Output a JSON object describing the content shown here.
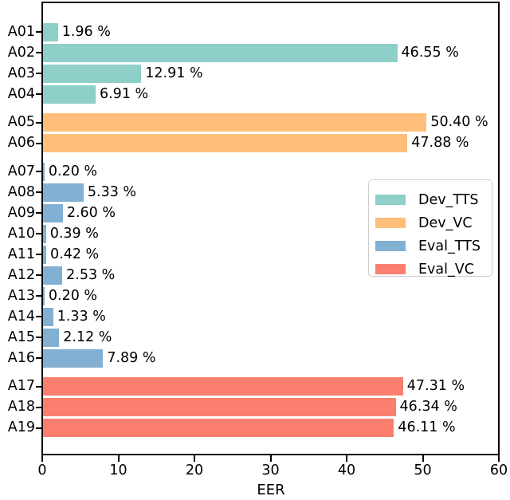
{
  "figure": {
    "background": "#ffffff",
    "axis_color": "#000000"
  },
  "chart_data": {
    "type": "bar",
    "orientation": "horizontal",
    "title": "",
    "xlabel": "EER",
    "ylabel": "",
    "xlim": [
      0,
      60
    ],
    "xticks": [
      "0",
      "10",
      "20",
      "30",
      "40",
      "50",
      "60"
    ],
    "xtick_values": [
      0,
      10,
      20,
      30,
      40,
      50,
      60
    ],
    "grid": false,
    "legend_position": "center-right",
    "bar_label_suffix": " %",
    "categories": [
      "A01",
      "A02",
      "A03",
      "A04",
      "A05",
      "A06",
      "A07",
      "A08",
      "A09",
      "A10",
      "A11",
      "A12",
      "A13",
      "A14",
      "A15",
      "A16",
      "A17",
      "A18",
      "A19"
    ],
    "series": [
      {
        "name": "Dev_TTS",
        "color": "#8ECFC9",
        "categories": [
          "A01",
          "A02",
          "A03",
          "A04"
        ],
        "values": [
          1.96,
          46.55,
          12.91,
          6.91
        ],
        "labels": [
          "1.96 %",
          "46.55 %",
          "12.91 %",
          "6.91 %"
        ]
      },
      {
        "name": "Dev_VC",
        "color": "#FFBE7A",
        "categories": [
          "A05",
          "A06"
        ],
        "values": [
          50.4,
          47.88
        ],
        "labels": [
          "50.40 %",
          "47.88 %"
        ]
      },
      {
        "name": "Eval_TTS",
        "color": "#82B0D2",
        "categories": [
          "A07",
          "A08",
          "A09",
          "A10",
          "A11",
          "A12",
          "A13",
          "A14",
          "A15",
          "A16"
        ],
        "values": [
          0.2,
          5.33,
          2.6,
          0.39,
          0.42,
          2.53,
          0.2,
          1.33,
          2.12,
          7.89
        ],
        "labels": [
          "0.20 %",
          "5.33 %",
          "2.60 %",
          "0.39 %",
          "0.42 %",
          "2.53 %",
          "0.20 %",
          "1.33 %",
          "2.12 %",
          "7.89 %"
        ]
      },
      {
        "name": "Eval_VC",
        "color": "#FA7F6F",
        "categories": [
          "A17",
          "A18",
          "A19"
        ],
        "values": [
          47.31,
          46.34,
          46.11
        ],
        "labels": [
          "47.31 %",
          "46.34 %",
          "46.11 %"
        ]
      }
    ],
    "legend_entries": [
      "Dev_TTS",
      "Dev_VC",
      "Eval_TTS",
      "Eval_VC"
    ]
  }
}
